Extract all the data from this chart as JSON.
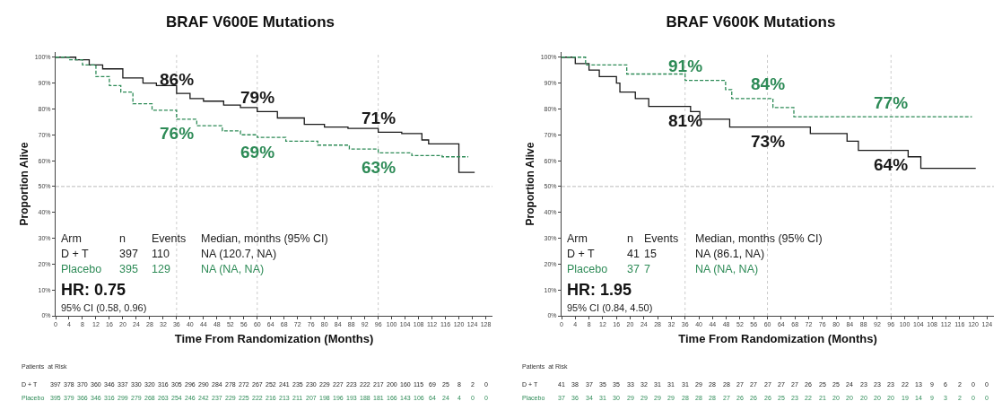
{
  "chart_data": [
    {
      "type": "step",
      "title": "BRAF V600E Mutations",
      "xlabel": "Time From Randomization (Months)",
      "ylabel": "Proportion Alive",
      "xlim": [
        0,
        130
      ],
      "xticks": [
        0,
        4,
        8,
        12,
        16,
        20,
        24,
        28,
        32,
        36,
        40,
        44,
        48,
        52,
        56,
        60,
        64,
        68,
        72,
        76,
        80,
        84,
        88,
        92,
        96,
        100,
        104,
        108,
        112,
        116,
        120,
        124,
        128
      ],
      "ylim": [
        0,
        102
      ],
      "yticks": [
        {
          "value": 0,
          "label": "0%"
        },
        {
          "value": 10,
          "label": "10%"
        },
        {
          "value": 20,
          "label": "20%"
        },
        {
          "value": 30,
          "label": "30%"
        },
        {
          "value": 40,
          "label": "40%"
        },
        {
          "value": 50,
          "label": "50%"
        },
        {
          "value": 60,
          "label": "60%"
        },
        {
          "value": 70,
          "label": "70%"
        },
        {
          "value": 80,
          "label": "80%"
        },
        {
          "value": 90,
          "label": "90%"
        },
        {
          "value": 100,
          "label": "100%"
        }
      ],
      "series": [
        {
          "name": "D + T",
          "color": "#1a1a1a",
          "line_style": "solid",
          "x": [
            0,
            6,
            10,
            14,
            20,
            26,
            30,
            36,
            40,
            44,
            50,
            55,
            60,
            66,
            74,
            80,
            87,
            96,
            103,
            109,
            111,
            120,
            124.7
          ],
          "values": [
            100,
            99,
            97,
            95.5,
            92,
            90,
            89,
            86,
            84,
            83,
            81.5,
            80.5,
            79,
            76.5,
            74,
            73,
            72.5,
            71,
            70.5,
            68,
            66.5,
            55.5,
            55.5
          ],
          "value_labels": [
            null,
            null,
            null,
            null,
            null,
            null,
            null,
            "86%",
            null,
            null,
            null,
            null,
            "79%",
            null,
            null,
            null,
            null,
            "71%",
            null,
            null,
            null,
            null,
            null
          ]
        },
        {
          "name": "Placebo",
          "color": "#2e8b57",
          "line_style": "dashed",
          "x": [
            0,
            4,
            8,
            12,
            16,
            19.4,
            23,
            28.7,
            36,
            42,
            49.6,
            55,
            60,
            68.5,
            78,
            87.4,
            96,
            106,
            115,
            122.8
          ],
          "values": [
            100,
            99,
            97,
            92.5,
            89,
            86.5,
            82,
            79.5,
            76,
            73.5,
            71.5,
            70,
            69,
            67.5,
            66,
            64.5,
            63,
            62,
            61.5,
            61.5
          ],
          "value_labels": [
            null,
            null,
            null,
            null,
            null,
            null,
            null,
            null,
            "76%",
            null,
            null,
            null,
            "69%",
            null,
            null,
            null,
            "63%",
            null,
            null,
            null
          ]
        }
      ],
      "ref_lines": [
        {
          "axis": "y",
          "value": 50,
          "color": "#bbbbbb",
          "line_style": "dashed"
        },
        {
          "axis": "x",
          "value": 36,
          "color": "#cccccc",
          "line_style": "dotted"
        },
        {
          "axis": "x",
          "value": 60,
          "color": "#cccccc",
          "line_style": "dotted"
        },
        {
          "axis": "x",
          "value": 96,
          "color": "#cccccc",
          "line_style": "dotted"
        }
      ],
      "annotations": [
        "Arm",
        "n",
        "Events",
        "Median, months (95% CI)",
        "397",
        "110",
        "NA (120.7, NA)",
        "395",
        "129",
        "NA (NA, NA)",
        "HR: 0.75",
        "95% CI (0.58, 0.96)",
        "Patients  at Risk",
        "397 378 370 360 346 337 330 320 316 305 296 290 284 278 272 267 252 241 235 230 229 227 223 222 217 200 160 115 69 25 8 2 0",
        "395 379 366 346 316 299 279 268 263 254 246 242 237 229 225 222 216 213 211 207 198 196 193 188 181 166 143 106 64 24 4 0 0"
      ]
    },
    {
      "type": "step",
      "title": "BRAF V600K Mutations",
      "xlabel": "Time From Randomization (Months)",
      "ylabel": "Proportion Alive",
      "xlim": [
        0,
        126
      ],
      "xticks": [
        0,
        4,
        8,
        12,
        16,
        20,
        24,
        28,
        32,
        36,
        40,
        44,
        48,
        52,
        56,
        60,
        64,
        68,
        72,
        76,
        80,
        84,
        88,
        92,
        96,
        100,
        104,
        108,
        112,
        116,
        120,
        124
      ],
      "ylim": [
        0,
        102
      ],
      "yticks": [
        {
          "value": 0,
          "label": "0%"
        },
        {
          "value": 10,
          "label": "10%"
        },
        {
          "value": 20,
          "label": "20%"
        },
        {
          "value": 30,
          "label": "30%"
        },
        {
          "value": 40,
          "label": "40%"
        },
        {
          "value": 50,
          "label": "50%"
        },
        {
          "value": 60,
          "label": "60%"
        },
        {
          "value": 70,
          "label": "70%"
        },
        {
          "value": 80,
          "label": "80%"
        },
        {
          "value": 90,
          "label": "90%"
        },
        {
          "value": 100,
          "label": "100%"
        }
      ],
      "series": [
        {
          "name": "D + T",
          "color": "#1a1a1a",
          "line_style": "solid",
          "x": [
            0,
            4,
            8,
            11,
            16,
            17,
            21.5,
            25.4,
            36,
            37.6,
            40.3,
            49,
            60,
            72.5,
            83.2,
            86.5,
            96,
            101,
            104.7,
            120.7
          ],
          "values": [
            100,
            97.5,
            95,
            92.5,
            90,
            86.5,
            84,
            81,
            81,
            79,
            76,
            73,
            73,
            70.5,
            67.5,
            64,
            64,
            61.5,
            57,
            57
          ],
          "value_labels": [
            null,
            null,
            null,
            null,
            null,
            null,
            null,
            null,
            "81%",
            null,
            null,
            null,
            "73%",
            null,
            null,
            null,
            "64%",
            null,
            null,
            null
          ]
        },
        {
          "name": "Placebo",
          "color": "#2e8b57",
          "line_style": "dashed",
          "x": [
            0,
            7,
            19,
            36,
            47.8,
            49.6,
            60,
            61.6,
            67.7,
            96,
            119.6
          ],
          "values": [
            100,
            97,
            93.5,
            91,
            87.5,
            84,
            84,
            80.5,
            77,
            77,
            77
          ],
          "value_labels": [
            null,
            null,
            null,
            "91%",
            null,
            null,
            "84%",
            null,
            null,
            "77%",
            null
          ]
        }
      ],
      "ref_lines": [
        {
          "axis": "y",
          "value": 50,
          "color": "#bbbbbb",
          "line_style": "dashed"
        },
        {
          "axis": "x",
          "value": 36,
          "color": "#cccccc",
          "line_style": "dotted"
        },
        {
          "axis": "x",
          "value": 60,
          "color": "#cccccc",
          "line_style": "dotted"
        },
        {
          "axis": "x",
          "value": 96,
          "color": "#cccccc",
          "line_style": "dotted"
        }
      ],
      "annotations": [
        "Arm",
        "n",
        "Events",
        "Median, months (95% CI)",
        "41",
        "15",
        "NA (86.1, NA)",
        "37",
        "7",
        "NA (NA, NA)",
        "HR: 1.95",
        "95% CI (0.84, 4.50)",
        "Patients  at Risk",
        "41 38 37 35 35 33 32 31 31 31 29 28 28 27 27 27 27 27 26 25 25 24 23 23 23 22 13 9 6 2 0 0",
        "37 36 34 31 30 29 29 29 29 28 28 28 27 26 26 26 25 23 22 21 20 20 20 20 20 19 14 9 3 2 0 0"
      ]
    }
  ]
}
